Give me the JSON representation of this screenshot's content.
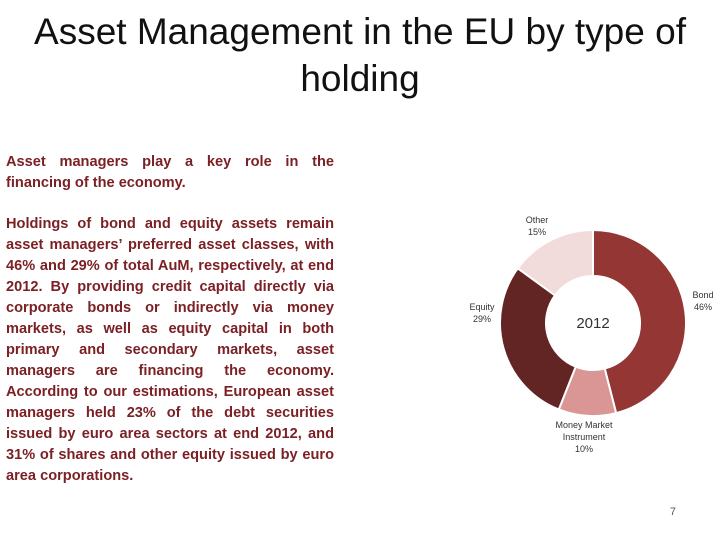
{
  "slide": {
    "title": "Asset Management in the EU by type of holding",
    "page_number": "7"
  },
  "text": {
    "lead": "Asset managers play a key role in the financing of the economy.",
    "body": "Holdings of bond and equity assets remain asset managers’ preferred asset classes, with 46% and 29% of total AuM, respectively, at end 2012. By providing credit capital directly via corporate bonds or indirectly via money markets, as well as equity capital in both primary and secondary markets, asset managers are financing the economy. According to our estimations, European asset managers held 23% of the debt securities issued by euro area sectors at end 2012, and 31% of shares and other equity issued by euro area corporations."
  },
  "chart_data": {
    "type": "pie",
    "variant": "donut",
    "center_label": "2012",
    "unit": "%",
    "start": "top",
    "direction": "clockwise",
    "slices": [
      {
        "label_lines": [
          "Bond",
          "46%"
        ],
        "value": 46,
        "color": "#943634"
      },
      {
        "label_lines": [
          "Money Market",
          "Instrument",
          "10%"
        ],
        "value": 10,
        "color": "#d99694"
      },
      {
        "label_lines": [
          "Equity",
          "29%"
        ],
        "value": 29,
        "color": "#632523"
      },
      {
        "label_lines": [
          "Other",
          "15%"
        ],
        "value": 15,
        "color": "#f2dcdb"
      }
    ]
  }
}
